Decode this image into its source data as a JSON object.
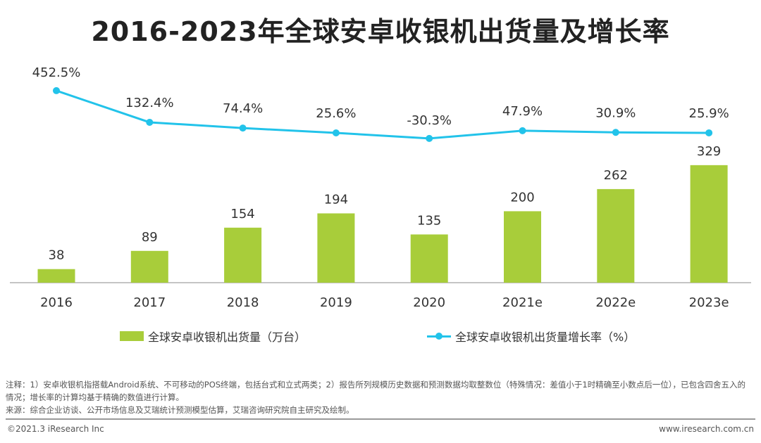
{
  "title": "2016-2023年全球安卓收银机出货量及增长率",
  "chart_data": {
    "type": "bar+line",
    "title": "2016-2023年全球安卓收银机出货量及增长率",
    "categories": [
      "2016",
      "2017",
      "2018",
      "2019",
      "2020",
      "2021e",
      "2022e",
      "2023e"
    ],
    "series": [
      {
        "name": "全球安卓收银机出货量（万台）",
        "type": "bar",
        "values": [
          38,
          89,
          154,
          194,
          135,
          200,
          262,
          329
        ],
        "labels": [
          "38",
          "89",
          "154",
          "194",
          "135",
          "200",
          "262",
          "329"
        ],
        "color": "#a8cd3a"
      },
      {
        "name": "全球安卓收银机出货量增长率（%）",
        "type": "line",
        "values": [
          452.5,
          132.4,
          74.4,
          25.6,
          -30.3,
          47.9,
          30.9,
          25.9
        ],
        "labels": [
          "452.5%",
          "132.4%",
          "74.4%",
          "25.6%",
          "-30.3%",
          "47.9%",
          "30.9%",
          "25.9%"
        ],
        "color": "#22c3ea"
      }
    ],
    "grid": false,
    "legend": "bottom"
  },
  "notes": [
    "注释：1）安卓收银机指搭载Android系统、不可移动的POS终端，包括台式和立式两类；2）报告所列规模历史数据和预测数据均取整数位（特殊情况：差值小于1时精确至小数点后一位），已包含四舍五入的情况；增长率的计算均基于精确的数值进行计算。",
    "来源：综合企业访谈、公开市场信息及艾瑞统计预测模型估算，艾瑞咨询研究院自主研究及绘制。"
  ],
  "footer": {
    "left": "©2021.3 iResearch Inc",
    "right": "www.iresearch.com.cn"
  }
}
